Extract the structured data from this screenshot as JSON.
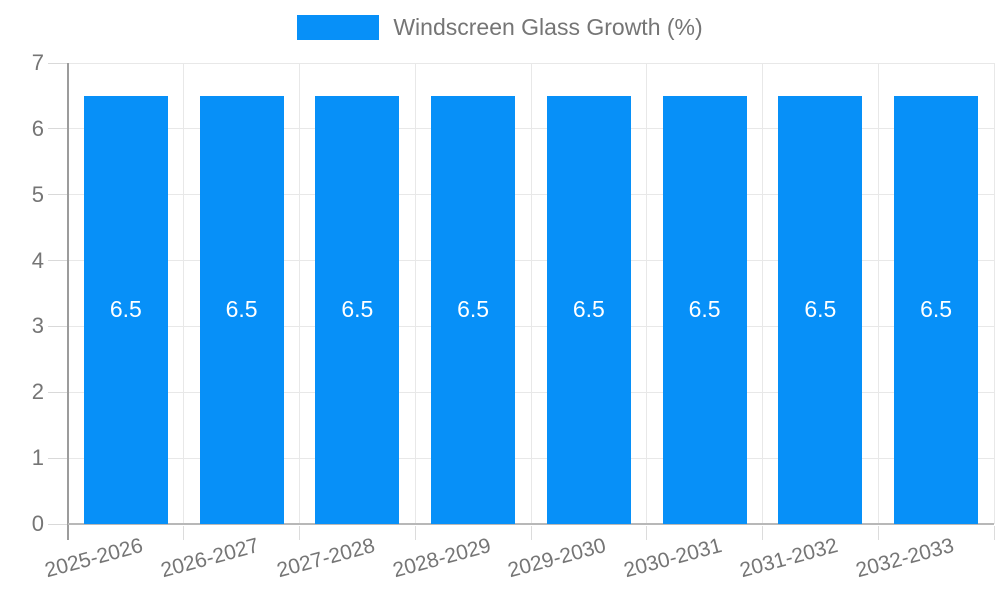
{
  "legend": {
    "label": "Windscreen Glass Growth (%)"
  },
  "colors": {
    "bar": "#0790f8",
    "grid": "#e8e8e8",
    "tick": "#d9d9d9",
    "xtick": "#dcdcdc",
    "y_axis_line": "#9c9c9c",
    "x_axis_line": "#b8b8b8",
    "axis_text": "#757575",
    "value_text": "#ffffff"
  },
  "chart_data": {
    "type": "bar",
    "title": "Windscreen Glass Growth (%)",
    "categories": [
      "2025-2026",
      "2026-2027",
      "2027-2028",
      "2028-2029",
      "2029-2030",
      "2030-2031",
      "2031-2032",
      "2032-2033"
    ],
    "series": [
      {
        "name": "Windscreen Glass Growth (%)",
        "values": [
          6.5,
          6.5,
          6.5,
          6.5,
          6.5,
          6.5,
          6.5,
          6.5
        ]
      }
    ],
    "value_labels": [
      "6.5",
      "6.5",
      "6.5",
      "6.5",
      "6.5",
      "6.5",
      "6.5",
      "6.5"
    ],
    "xlabel": "",
    "ylabel": "",
    "ylim": [
      0,
      7
    ],
    "yticks": [
      0,
      1,
      2,
      3,
      4,
      5,
      6,
      7
    ],
    "grid": true,
    "legend_position": "top",
    "bar_value_labels_inside": true,
    "x_label_rotation_deg": -15
  }
}
